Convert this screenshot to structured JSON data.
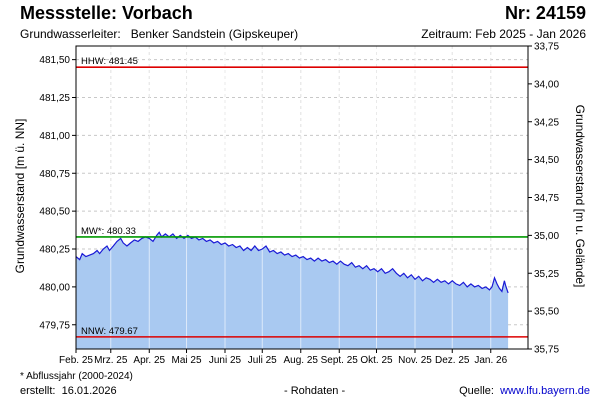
{
  "header": {
    "station_label": "Messstelle: Vorbach",
    "number_label": "Nr: 24159",
    "aquifer_label": "Grundwasserleiter:",
    "aquifer_value": "Benker Sandstein (Gipskeuper)",
    "period_label": "Zeitraum: Feb 2025 - Jan 2026"
  },
  "footer": {
    "footnote": "* Abflussjahr (2000-2024)",
    "created_label": "erstellt:",
    "created_date": "16.01.2026",
    "raw_data": "- Rohdaten -",
    "source_label": "Quelle:",
    "source_url": "www.lfu.bayern.de"
  },
  "colors": {
    "hhw": "#dd0000",
    "mw": "#009900",
    "nnw": "#dd0000",
    "area_fill": "#a9c9f1",
    "line": "#1a1ad6",
    "grid": "#c8c8c8"
  },
  "chart_data": {
    "type": "area",
    "title": "",
    "ylabel_left": "Grundwasserstand [m ü. NN]",
    "ylabel_right": "Grundwasserstand [m u. Gelände]",
    "ylim": [
      479.59,
      481.59
    ],
    "yticks_left": [
      "479,75",
      "480,00",
      "480,25",
      "480,50",
      "480,75",
      "481,00",
      "481,25",
      "481,50"
    ],
    "yticks_right": [
      "33,75",
      "34,00",
      "34,25",
      "34,50",
      "34,75",
      "35,00",
      "35,25",
      "35,50",
      "35,75"
    ],
    "right_axis_reference": {
      "left_value": 481.59,
      "right_value": 33.75,
      "step": 0.25
    },
    "x_start": "2025-02-01",
    "x_end": "2026-01-31",
    "xticks": [
      "Feb. 25",
      "Mrz. 25",
      "Apr. 25",
      "Mai 25",
      "Juni 25",
      "Juli 25",
      "Aug. 25",
      "Sept. 25",
      "Okt. 25",
      "Nov. 25",
      "Dez. 25",
      "Jan. 26"
    ],
    "xtick_dates": [
      "2025-02-01",
      "2025-03-01",
      "2025-04-01",
      "2025-05-01",
      "2025-06-01",
      "2025-07-01",
      "2025-08-01",
      "2025-09-01",
      "2025-10-01",
      "2025-11-01",
      "2025-12-01",
      "2026-01-01"
    ],
    "grid": true,
    "reference_lines": [
      {
        "name": "HHW",
        "label": "HHW: 481.45",
        "value": 481.45,
        "color": "#dd0000"
      },
      {
        "name": "MW",
        "label": "MW*: 480.33",
        "value": 480.33,
        "color": "#009900"
      },
      {
        "name": "NNW",
        "label": "NNW: 479.67",
        "value": 479.67,
        "color": "#dd0000"
      }
    ],
    "series": [
      {
        "points": [
          [
            "2025-02-01",
            480.2
          ],
          [
            "2025-02-04",
            480.18
          ],
          [
            "2025-02-06",
            480.22
          ],
          [
            "2025-02-09",
            480.2
          ],
          [
            "2025-02-12",
            480.21
          ],
          [
            "2025-02-15",
            480.22
          ],
          [
            "2025-02-18",
            480.24
          ],
          [
            "2025-02-20",
            480.22
          ],
          [
            "2025-02-23",
            480.25
          ],
          [
            "2025-02-26",
            480.27
          ],
          [
            "2025-02-28",
            480.24
          ],
          [
            "2025-03-03",
            480.27
          ],
          [
            "2025-03-06",
            480.3
          ],
          [
            "2025-03-09",
            480.32
          ],
          [
            "2025-03-11",
            480.29
          ],
          [
            "2025-03-14",
            480.27
          ],
          [
            "2025-03-17",
            480.29
          ],
          [
            "2025-03-20",
            480.31
          ],
          [
            "2025-03-23",
            480.3
          ],
          [
            "2025-03-26",
            480.32
          ],
          [
            "2025-03-29",
            480.33
          ],
          [
            "2025-04-01",
            480.32
          ],
          [
            "2025-04-04",
            480.3
          ],
          [
            "2025-04-07",
            480.34
          ],
          [
            "2025-04-09",
            480.36
          ],
          [
            "2025-04-11",
            480.33
          ],
          [
            "2025-04-14",
            480.35
          ],
          [
            "2025-04-17",
            480.33
          ],
          [
            "2025-04-20",
            480.35
          ],
          [
            "2025-04-23",
            480.32
          ],
          [
            "2025-04-26",
            480.34
          ],
          [
            "2025-04-29",
            480.32
          ],
          [
            "2025-05-02",
            480.34
          ],
          [
            "2025-05-05",
            480.32
          ],
          [
            "2025-05-08",
            480.33
          ],
          [
            "2025-05-11",
            480.31
          ],
          [
            "2025-05-14",
            480.32
          ],
          [
            "2025-05-17",
            480.3
          ],
          [
            "2025-05-20",
            480.31
          ],
          [
            "2025-05-23",
            480.29
          ],
          [
            "2025-05-26",
            480.3
          ],
          [
            "2025-05-29",
            480.28
          ],
          [
            "2025-06-01",
            480.29
          ],
          [
            "2025-06-04",
            480.27
          ],
          [
            "2025-06-07",
            480.28
          ],
          [
            "2025-06-10",
            480.26
          ],
          [
            "2025-06-13",
            480.27
          ],
          [
            "2025-06-16",
            480.24
          ],
          [
            "2025-06-19",
            480.26
          ],
          [
            "2025-06-22",
            480.24
          ],
          [
            "2025-06-25",
            480.27
          ],
          [
            "2025-06-28",
            480.24
          ],
          [
            "2025-07-01",
            480.25
          ],
          [
            "2025-07-04",
            480.27
          ],
          [
            "2025-07-07",
            480.23
          ],
          [
            "2025-07-10",
            480.24
          ],
          [
            "2025-07-13",
            480.22
          ],
          [
            "2025-07-16",
            480.23
          ],
          [
            "2025-07-19",
            480.21
          ],
          [
            "2025-07-22",
            480.22
          ],
          [
            "2025-07-25",
            480.2
          ],
          [
            "2025-07-28",
            480.21
          ],
          [
            "2025-07-31",
            480.19
          ],
          [
            "2025-08-03",
            480.2
          ],
          [
            "2025-08-06",
            480.18
          ],
          [
            "2025-08-09",
            480.19
          ],
          [
            "2025-08-12",
            480.17
          ],
          [
            "2025-08-15",
            480.19
          ],
          [
            "2025-08-18",
            480.17
          ],
          [
            "2025-08-21",
            480.18
          ],
          [
            "2025-08-24",
            480.16
          ],
          [
            "2025-08-27",
            480.17
          ],
          [
            "2025-08-30",
            480.15
          ],
          [
            "2025-09-02",
            480.17
          ],
          [
            "2025-09-05",
            480.15
          ],
          [
            "2025-09-08",
            480.14
          ],
          [
            "2025-09-11",
            480.16
          ],
          [
            "2025-09-14",
            480.13
          ],
          [
            "2025-09-17",
            480.14
          ],
          [
            "2025-09-20",
            480.12
          ],
          [
            "2025-09-23",
            480.14
          ],
          [
            "2025-09-26",
            480.11
          ],
          [
            "2025-09-29",
            480.12
          ],
          [
            "2025-10-02",
            480.1
          ],
          [
            "2025-10-05",
            480.12
          ],
          [
            "2025-10-08",
            480.09
          ],
          [
            "2025-10-11",
            480.1
          ],
          [
            "2025-10-14",
            480.12
          ],
          [
            "2025-10-17",
            480.09
          ],
          [
            "2025-10-20",
            480.07
          ],
          [
            "2025-10-23",
            480.09
          ],
          [
            "2025-10-26",
            480.06
          ],
          [
            "2025-10-29",
            480.08
          ],
          [
            "2025-11-01",
            480.05
          ],
          [
            "2025-11-04",
            480.07
          ],
          [
            "2025-11-07",
            480.04
          ],
          [
            "2025-11-10",
            480.06
          ],
          [
            "2025-11-13",
            480.05
          ],
          [
            "2025-11-16",
            480.03
          ],
          [
            "2025-11-19",
            480.05
          ],
          [
            "2025-11-22",
            480.03
          ],
          [
            "2025-11-25",
            480.04
          ],
          [
            "2025-11-28",
            480.02
          ],
          [
            "2025-12-01",
            480.04
          ],
          [
            "2025-12-04",
            480.02
          ],
          [
            "2025-12-07",
            480.01
          ],
          [
            "2025-12-10",
            480.03
          ],
          [
            "2025-12-13",
            480.0
          ],
          [
            "2025-12-16",
            480.02
          ],
          [
            "2025-12-19",
            480.0
          ],
          [
            "2025-12-22",
            480.01
          ],
          [
            "2025-12-25",
            479.99
          ],
          [
            "2025-12-28",
            480.0
          ],
          [
            "2025-12-31",
            479.98
          ],
          [
            "2026-01-02",
            480.0
          ],
          [
            "2026-01-04",
            480.06
          ],
          [
            "2026-01-06",
            480.02
          ],
          [
            "2026-01-08",
            479.99
          ],
          [
            "2026-01-10",
            479.97
          ],
          [
            "2026-01-12",
            480.04
          ],
          [
            "2026-01-13",
            480.01
          ],
          [
            "2026-01-15",
            479.96
          ]
        ]
      }
    ]
  }
}
